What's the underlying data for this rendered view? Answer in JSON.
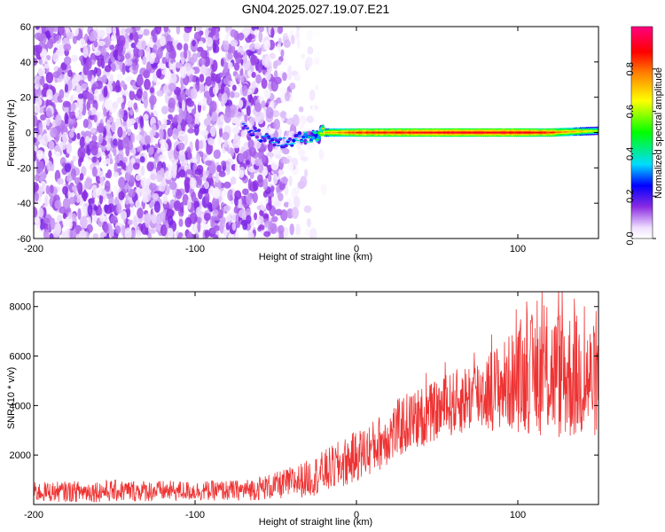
{
  "title": "GN04.2025.027.19.07.E21",
  "chart_data": [
    {
      "type": "heatmap",
      "xlabel": "Height of straight line (km)",
      "ylabel": "Frequency (Hz)",
      "xlim": [
        -200,
        150
      ],
      "ylim": [
        -60,
        60
      ],
      "xticks": [
        -200,
        -100,
        0,
        100
      ],
      "yticks": [
        -60,
        -40,
        -20,
        0,
        20,
        40,
        60
      ],
      "colorbar": {
        "label": "Normalized spectral amplitude",
        "range": [
          0.0,
          1.0
        ],
        "ticks": [
          0.0,
          0.2,
          0.4,
          0.6,
          0.8
        ],
        "tick_labels": [
          "0.0",
          "0.2",
          "0.4",
          "0.6",
          "0.8"
        ],
        "colormap": [
          "#ffffff",
          "#f0e6ff",
          "#8a2be2",
          "#0000ff",
          "#00ffff",
          "#00ff00",
          "#ffff00",
          "#ff8000",
          "#ff0000",
          "#ff0080"
        ]
      },
      "noise_region": {
        "x_range": [
          -200,
          -55
        ],
        "freq_range": [
          -60,
          60
        ],
        "amplitude": 0.15
      },
      "signal_line": {
        "description_points": [
          {
            "x": -70,
            "freq": 3,
            "amplitude": 0.25
          },
          {
            "x": -55,
            "freq": -4,
            "amplitude": 0.3
          },
          {
            "x": -45,
            "freq": -6,
            "amplitude": 0.3
          },
          {
            "x": -35,
            "freq": -3,
            "amplitude": 0.35
          },
          {
            "x": -25,
            "freq": -2,
            "amplitude": 0.45
          },
          {
            "x": -20,
            "freq": 0,
            "amplitude": 0.7
          },
          {
            "x": 0,
            "freq": 0,
            "amplitude": 0.85
          },
          {
            "x": 50,
            "freq": 0,
            "amplitude": 0.9
          },
          {
            "x": 100,
            "freq": 0,
            "amplitude": 0.9
          },
          {
            "x": 120,
            "freq": 0,
            "amplitude": 0.85
          },
          {
            "x": 150,
            "freq": 1,
            "amplitude": 0.6
          }
        ]
      }
    },
    {
      "type": "line",
      "xlabel": "Height of straight line (km)",
      "ylabel": "SNR (10 * v/v)",
      "xlim": [
        -200,
        150
      ],
      "ylim": [
        0,
        8600
      ],
      "xticks": [
        -200,
        -100,
        0,
        100
      ],
      "yticks": [
        2000,
        4000,
        6000,
        8000
      ],
      "color": "#ee3333",
      "envelope": [
        {
          "x": -200,
          "low": 100,
          "high": 900
        },
        {
          "x": -150,
          "low": 100,
          "high": 1000
        },
        {
          "x": -100,
          "low": 150,
          "high": 950
        },
        {
          "x": -70,
          "low": 150,
          "high": 1000
        },
        {
          "x": -50,
          "low": 200,
          "high": 1300
        },
        {
          "x": -30,
          "low": 300,
          "high": 1800
        },
        {
          "x": -10,
          "low": 600,
          "high": 2600
        },
        {
          "x": 10,
          "low": 1200,
          "high": 3400
        },
        {
          "x": 30,
          "low": 2000,
          "high": 4500
        },
        {
          "x": 50,
          "low": 2600,
          "high": 5000
        },
        {
          "x": 70,
          "low": 2900,
          "high": 5800
        },
        {
          "x": 90,
          "low": 3000,
          "high": 6600
        },
        {
          "x": 110,
          "low": 2800,
          "high": 7800
        },
        {
          "x": 130,
          "low": 2500,
          "high": 8000
        },
        {
          "x": 150,
          "low": 2700,
          "high": 7200
        }
      ]
    }
  ]
}
